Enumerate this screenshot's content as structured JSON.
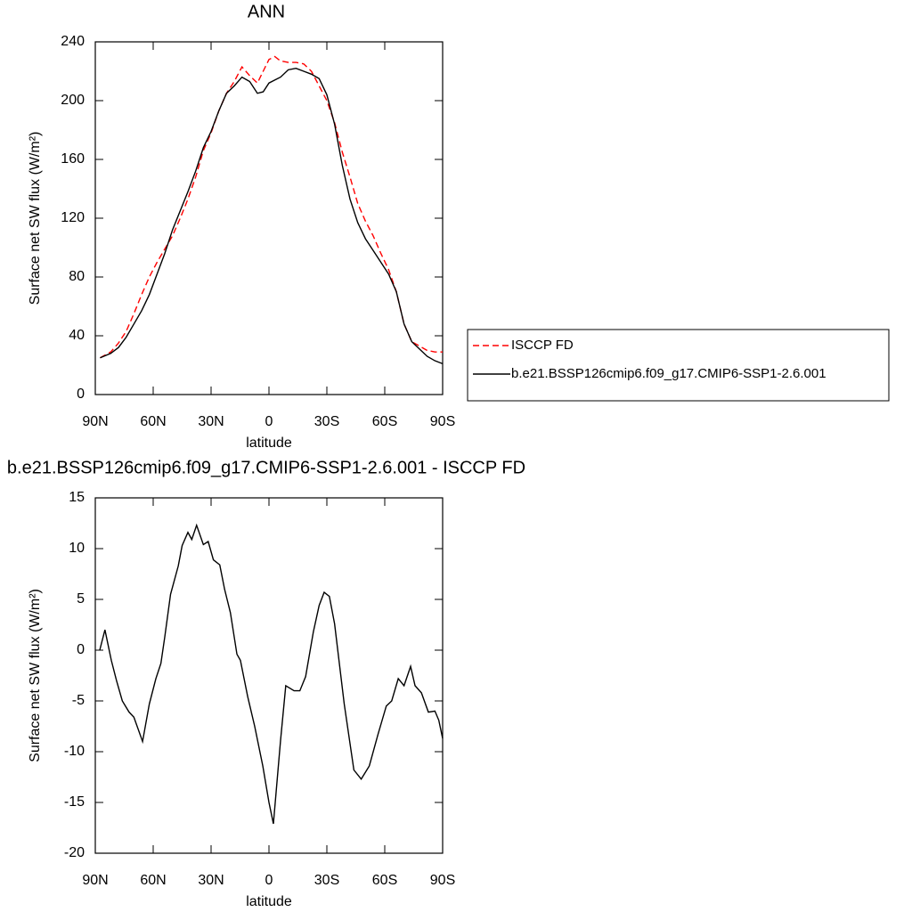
{
  "chart_data": [
    {
      "type": "line",
      "title": "ANN",
      "xlabel": "latitude",
      "ylabel": "Surface net SW flux (W/m²)",
      "x": [
        87.5,
        82,
        78,
        74,
        70,
        66,
        62,
        58,
        54,
        50,
        46,
        42,
        38,
        34,
        30,
        26,
        22,
        18,
        14,
        10,
        6,
        3,
        0,
        -3,
        -6,
        -10,
        -14,
        -18,
        -22,
        -26,
        -30,
        -34,
        -38,
        -42,
        -46,
        -50,
        -54,
        -58,
        -62,
        -66,
        -70,
        -74,
        -78,
        -82,
        -86,
        -90
      ],
      "series": [
        {
          "name": "ISCCP FD",
          "color": "#ff0000",
          "dash": true,
          "values": [
            25,
            29,
            35,
            43,
            55,
            68,
            80,
            90,
            99,
            108,
            120,
            133,
            148,
            166,
            178,
            193,
            205,
            213,
            223,
            217,
            212,
            220,
            228,
            230,
            227,
            226,
            226,
            225,
            220,
            210,
            200,
            185,
            165,
            148,
            130,
            118,
            108,
            96,
            85,
            70,
            48,
            36,
            33,
            30,
            29,
            29
          ]
        },
        {
          "name": "b.e21.BSSP126cmip6.f09_g17.CMIP6-SSP1-2.6.001",
          "color": "#000000",
          "dash": false,
          "values": [
            25,
            28,
            32,
            39,
            48,
            57,
            68,
            82,
            96,
            112,
            125,
            138,
            152,
            168,
            179,
            193,
            205,
            210,
            216,
            213,
            205,
            206,
            212,
            214,
            216,
            221,
            222,
            220,
            218,
            215,
            204,
            184,
            156,
            133,
            117,
            106,
            98,
            90,
            82,
            70,
            48,
            36,
            31,
            26,
            23,
            21
          ]
        }
      ],
      "xlim": [
        90,
        -90
      ],
      "xticks": [
        {
          "value": 90,
          "label": "90N"
        },
        {
          "value": 60,
          "label": "60N"
        },
        {
          "value": 30,
          "label": "30N"
        },
        0,
        {
          "value": -30,
          "label": "30S"
        },
        {
          "value": -60,
          "label": "60S"
        },
        {
          "value": -90,
          "label": "90S"
        }
      ],
      "ylim": [
        0,
        240
      ],
      "yticks": [
        0,
        40,
        80,
        120,
        160,
        200,
        240
      ],
      "grid": false,
      "legend": "right"
    },
    {
      "type": "line",
      "title": "b.e21.BSSP126cmip6.f09_g17.CMIP6-SSP1-2.6.001 - ISCCP FD",
      "xlabel": "latitude",
      "ylabel": "Surface net SW flux (W/m²)",
      "x": [
        87.7,
        85,
        81.7,
        79,
        76,
        72.5,
        70,
        65.5,
        62,
        58.6,
        56,
        54,
        51,
        47,
        45,
        42,
        40,
        37.5,
        34,
        31.5,
        28.8,
        25.5,
        23,
        20,
        16.6,
        14.8,
        11,
        7.4,
        3.2,
        0,
        -2.3,
        -6,
        -8.7,
        -13,
        -16,
        -19,
        -23,
        -26,
        -28.6,
        -31.3,
        -34,
        -39,
        -44,
        -47.8,
        -52,
        -56.5,
        -60.8,
        -63.6,
        -67,
        -70,
        -73.4,
        -75.7,
        -79,
        -82.6,
        -86,
        -88,
        -90
      ],
      "values": [
        0,
        2,
        -1,
        -3,
        -5,
        -6.1,
        -6.6,
        -9,
        -5.3,
        -2.8,
        -1.3,
        1.3,
        5.5,
        8.3,
        10.3,
        11.6,
        10.9,
        12.3,
        10.4,
        10.7,
        8.9,
        8.4,
        6,
        3.7,
        -0.4,
        -1,
        -4.6,
        -7.5,
        -11.4,
        -15,
        -17.1,
        -8.9,
        -3.5,
        -4,
        -4,
        -2.6,
        1.8,
        4.4,
        5.7,
        5.3,
        2.6,
        -5.3,
        -11.8,
        -12.7,
        -11.4,
        -8.3,
        -5.5,
        -5,
        -2.8,
        -3.5,
        -1.6,
        -3.5,
        -4.2,
        -6.1,
        -6,
        -6.9,
        -8.7
      ],
      "color": "#000000",
      "xlim": [
        90,
        -90
      ],
      "xticks": [
        {
          "value": 90,
          "label": "90N"
        },
        {
          "value": 60,
          "label": "60N"
        },
        {
          "value": 30,
          "label": "30N"
        },
        0,
        {
          "value": -30,
          "label": "30S"
        },
        {
          "value": -60,
          "label": "60S"
        },
        {
          "value": -90,
          "label": "90S"
        }
      ],
      "ylim": [
        -20,
        15
      ],
      "yticks": [
        -20,
        -15,
        -10,
        -5,
        0,
        5,
        10,
        15
      ],
      "grid": false
    }
  ]
}
